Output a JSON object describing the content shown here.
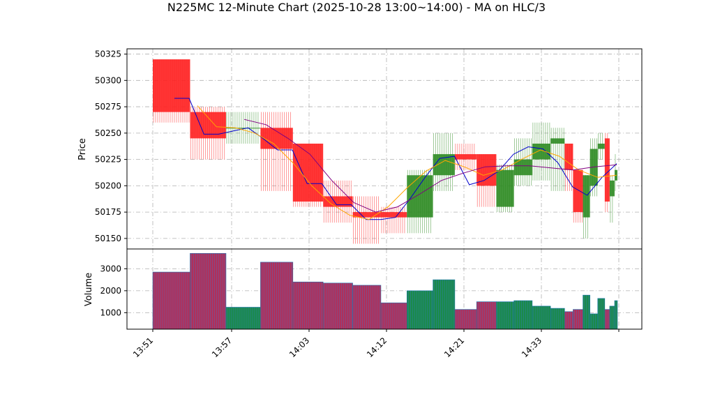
{
  "chart_data": {
    "type": "candlestick",
    "title": "N225MC 12-Minute Chart (2025-10-28 13:00~14:00) - MA on HLC/3",
    "colors": {
      "up": "#2e8b22",
      "down": "#ff2020",
      "ma_short": "#0000cc",
      "ma_mid": "#ffa500",
      "ma_long": "#800080",
      "grid": "#b0b0b0"
    },
    "price_panel": {
      "ylabel": "Price",
      "ylim": [
        50140,
        50330
      ],
      "yticks": [
        50150,
        50175,
        50200,
        50225,
        50250,
        50275,
        50300,
        50325
      ]
    },
    "volume_panel": {
      "ylabel": "Volume",
      "ylim": [
        250,
        3900
      ],
      "yticks": [
        1000,
        2000,
        3000
      ]
    },
    "xticks": [
      "13:51",
      "13:57",
      "14:03",
      "14:12",
      "14:21",
      "14:33"
    ],
    "candles": [
      {
        "open": 50320,
        "close": 50270,
        "high": 50320,
        "low": 50260,
        "volume": 2850
      },
      {
        "open": 50270,
        "close": 50245,
        "high": 50275,
        "low": 50225,
        "volume": 3700
      },
      {
        "open": 50255,
        "close": 50255,
        "high": 50270,
        "low": 50240,
        "volume": 1250
      },
      {
        "open": 50255,
        "close": 50235,
        "high": 50270,
        "low": 50195,
        "volume": 3300
      },
      {
        "open": 50240,
        "close": 50185,
        "high": 50240,
        "low": 50180,
        "volume": 2400
      },
      {
        "open": 50190,
        "close": 50180,
        "high": 50205,
        "low": 50165,
        "volume": 2350
      },
      {
        "open": 50175,
        "close": 50170,
        "high": 50190,
        "low": 50145,
        "volume": 2250
      },
      {
        "open": 50175,
        "close": 50170,
        "high": 50180,
        "low": 50155,
        "volume": 1450
      },
      {
        "open": 50170,
        "close": 50210,
        "high": 50215,
        "low": 50155,
        "volume": 2000
      },
      {
        "open": 50210,
        "close": 50230,
        "high": 50250,
        "low": 50195,
        "volume": 2500
      },
      {
        "open": 50230,
        "close": 50225,
        "high": 50240,
        "low": 50215,
        "volume": 1150
      },
      {
        "open": 50230,
        "close": 50200,
        "high": 50230,
        "low": 50180,
        "volume": 1500
      },
      {
        "open": 50180,
        "close": 50215,
        "high": 50220,
        "low": 50175,
        "volume": 1500
      },
      {
        "open": 50210,
        "close": 50225,
        "high": 50245,
        "low": 50200,
        "volume": 1550
      },
      {
        "open": 50225,
        "close": 50240,
        "high": 50260,
        "low": 50205,
        "volume": 1300
      },
      {
        "open": 50240,
        "close": 50245,
        "high": 50255,
        "low": 50195,
        "volume": 1200
      },
      {
        "open": 50240,
        "close": 50215,
        "high": 50240,
        "low": 50195,
        "volume": 1050
      },
      {
        "open": 50215,
        "close": 50175,
        "high": 50215,
        "low": 50165,
        "volume": 1150
      },
      {
        "open": 50170,
        "close": 50210,
        "high": 50210,
        "low": 50150,
        "volume": 1800
      },
      {
        "open": 50200,
        "close": 50235,
        "high": 50245,
        "low": 50190,
        "volume": 950
      },
      {
        "open": 50235,
        "close": 50240,
        "high": 50250,
        "low": 50225,
        "volume": 1650
      },
      {
        "open": 50245,
        "close": 50185,
        "high": 50250,
        "low": 50175,
        "volume": 1150
      },
      {
        "open": 50190,
        "close": 50205,
        "high": 50210,
        "low": 50165,
        "volume": 1300
      },
      {
        "open": 50205,
        "close": 50215,
        "high": 50230,
        "low": 50195,
        "volume": 1550
      }
    ],
    "ma_short": [
      50283,
      50283,
      50249,
      50249,
      50252,
      50255,
      50245,
      50234,
      50234,
      50202,
      50202,
      50182,
      50182,
      50168,
      50168,
      50170,
      50188,
      50208,
      50226,
      50228,
      50201,
      50205,
      50214,
      50230,
      50237,
      50235,
      50222,
      50199,
      50191,
      50208,
      50221
    ],
    "ma_mid": [
      50276,
      50256,
      50255,
      50250,
      50240,
      50222,
      50200,
      50183,
      50172,
      50168,
      50180,
      50198,
      50214,
      50224,
      50218,
      50210,
      50215,
      50225,
      50234,
      50228,
      50215,
      50208,
      50210
    ],
    "ma_long": [
      50263,
      50258,
      50245,
      50230,
      50205,
      50184,
      50175,
      50180,
      50192,
      50205,
      50212,
      50218,
      50219,
      50219,
      50217,
      50215,
      50218,
      50220
    ]
  }
}
